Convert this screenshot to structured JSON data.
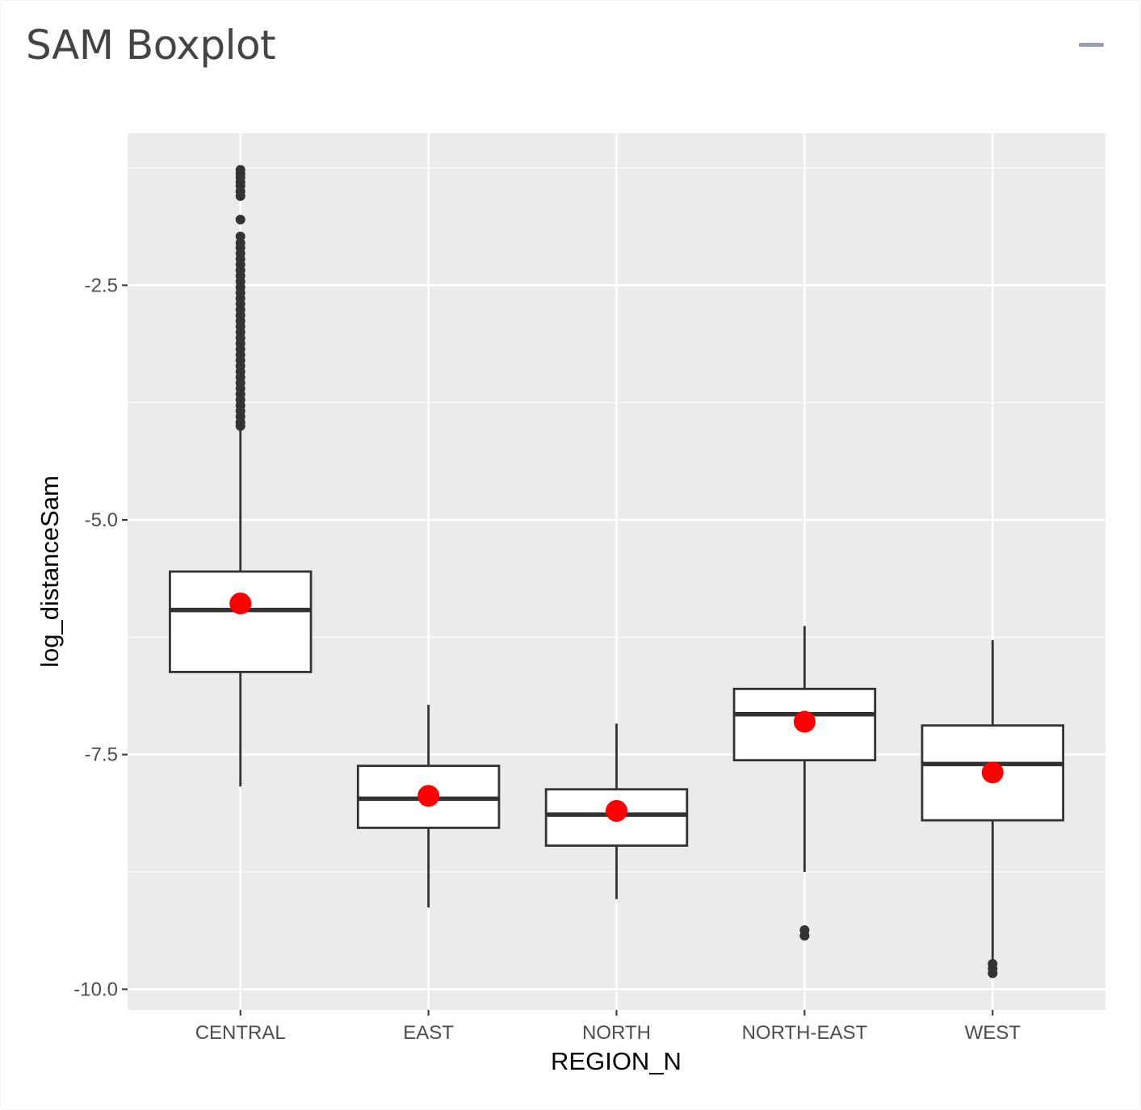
{
  "panel": {
    "title": "SAM Boxplot",
    "collapse_icon": "minus-icon"
  },
  "chart_data": {
    "type": "boxplot",
    "xlabel": "REGION_N",
    "ylabel": "log_distanceSam",
    "categories": [
      "CENTRAL",
      "EAST",
      "NORTH",
      "NORTH-EAST",
      "WEST"
    ],
    "yticks": [
      -2.5,
      -5.0,
      -7.5,
      -10.0
    ],
    "ytick_labels": [
      "-2.5",
      "-5.0",
      "-7.5",
      "-10.0"
    ],
    "ylim": [
      -10.22,
      -0.88
    ],
    "grid": true,
    "boxes": [
      {
        "category": "CENTRAL",
        "whisker_low": -7.84,
        "q1": -6.62,
        "median": -5.96,
        "q3": -5.55,
        "whisker_high": -4.03,
        "mean": -5.89,
        "outliers": [
          -1.27,
          -1.31,
          -1.35,
          -1.4,
          -1.44,
          -1.5,
          -1.55,
          -1.8,
          -1.98,
          -2.05,
          -2.1,
          -2.16,
          -2.22,
          -2.28,
          -2.34,
          -2.4,
          -2.46,
          -2.52,
          -2.58,
          -2.64,
          -2.7,
          -2.76,
          -2.82,
          -2.88,
          -2.94,
          -3.0,
          -3.06,
          -3.12,
          -3.18,
          -3.24,
          -3.3,
          -3.36,
          -3.42,
          -3.48,
          -3.54,
          -3.6,
          -3.66,
          -3.72,
          -3.78,
          -3.84,
          -3.9,
          -3.96,
          -4.0
        ]
      },
      {
        "category": "EAST",
        "whisker_low": -9.13,
        "q1": -8.28,
        "median": -7.97,
        "q3": -7.62,
        "whisker_high": -6.97,
        "mean": -7.94,
        "outliers": []
      },
      {
        "category": "NORTH",
        "whisker_low": -9.04,
        "q1": -8.47,
        "median": -8.14,
        "q3": -7.87,
        "whisker_high": -7.17,
        "mean": -8.1,
        "outliers": []
      },
      {
        "category": "NORTH-EAST",
        "whisker_low": -8.75,
        "q1": -7.56,
        "median": -7.07,
        "q3": -6.8,
        "whisker_high": -6.13,
        "mean": -7.15,
        "outliers": [
          -9.37,
          -9.43
        ]
      },
      {
        "category": "WEST",
        "whisker_low": -9.71,
        "q1": -8.2,
        "median": -7.6,
        "q3": -7.19,
        "whisker_high": -6.28,
        "mean": -7.69,
        "outliers": [
          -9.73,
          -9.78,
          -9.83
        ]
      }
    ],
    "colors": {
      "panel_background": "#ebebeb",
      "grid": "#ffffff",
      "box_fill": "#ffffff",
      "box_stroke": "#333333",
      "outlier": "#333333",
      "mean_point": "#ff0000"
    }
  }
}
